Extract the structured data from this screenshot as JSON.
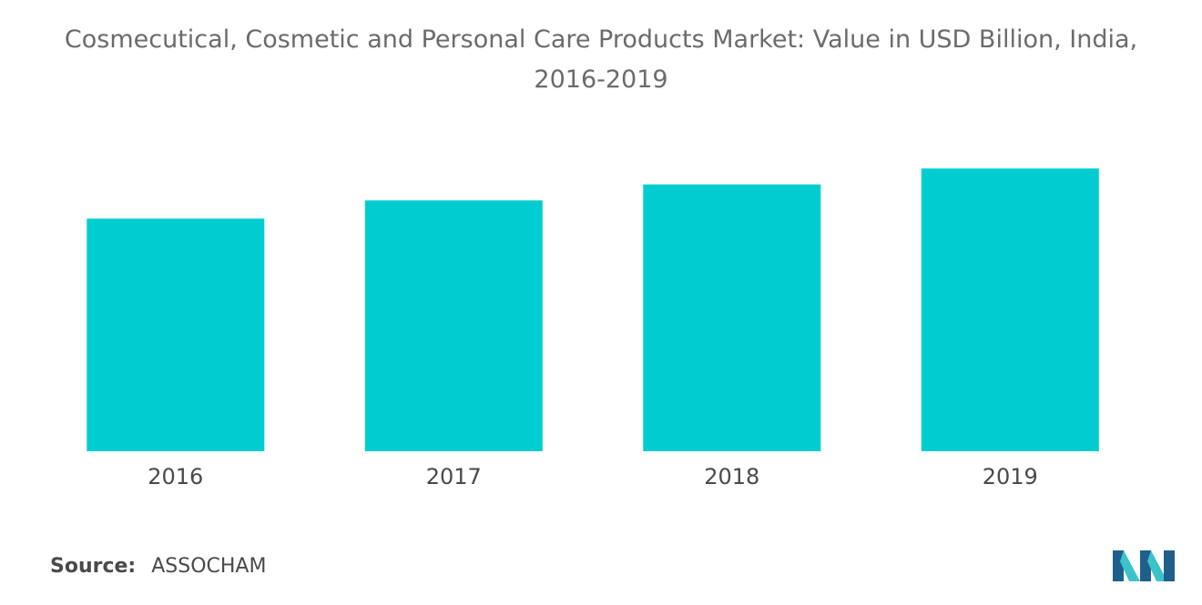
{
  "title": {
    "line1": "Cosmecutical, Cosmetic and Personal Care Products Market: Value in USD Billion, India,",
    "line2": "2016-2019"
  },
  "source": {
    "label": "Source:",
    "value": "ASSOCHAM"
  },
  "colors": {
    "bar": "#00CDCF",
    "logo_dark": "#1f5f8b",
    "logo_light": "#3bc3c9"
  },
  "logo_icon": "mordor-intelligence-logo",
  "chart_data": {
    "type": "bar",
    "categories": [
      "2016",
      "2017",
      "2018",
      "2019"
    ],
    "values": [
      10.2,
      11.0,
      11.7,
      12.4
    ],
    "title": "Cosmecutical, Cosmetic and Personal Care Products Market: Value in USD Billion, India, 2016-2019",
    "xlabel": "",
    "ylabel": "",
    "ylim": [
      0,
      15
    ],
    "grid": false,
    "legend": "none"
  }
}
